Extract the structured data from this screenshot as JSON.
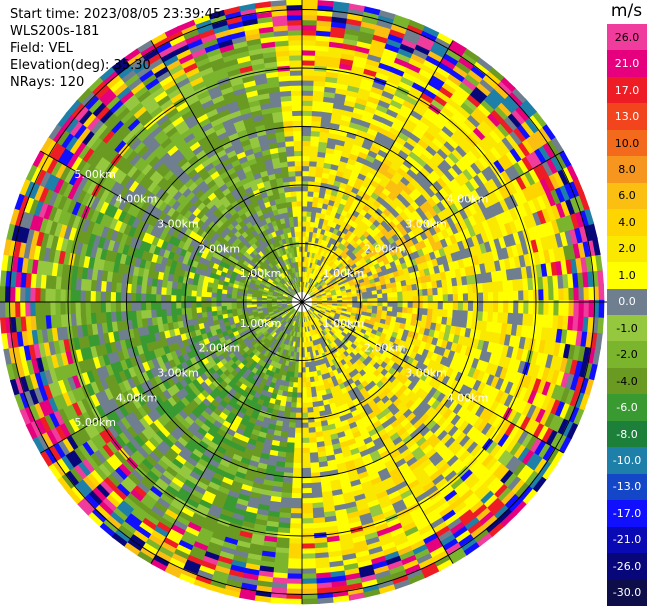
{
  "info": {
    "start_time": "Start time: 2023/08/05 23:39:45",
    "instrument": "WLS200s-181",
    "field": "Field: VEL",
    "elevation": "Elevation(deg): 35.30",
    "nrays": "NRays: 120"
  },
  "colorbar": {
    "unit": "m/s",
    "ticks": [
      "26.0",
      "21.0",
      "17.0",
      "13.0",
      "10.0",
      "8.0",
      "6.0",
      "4.0",
      "2.0",
      "1.0",
      "0.0",
      "-1.0",
      "-2.0",
      "-4.0",
      "-6.0",
      "-8.0",
      "-10.0",
      "-13.0",
      "-17.0",
      "-21.0",
      "-26.0",
      "-30.0"
    ],
    "colors": [
      "#f03c9c",
      "#e6007e",
      "#ee1c24",
      "#f2441d",
      "#f46a1c",
      "#f7961e",
      "#fbbf12",
      "#ffd500",
      "#fbe800",
      "#ffff00",
      "#6f7f8f",
      "#95c83e",
      "#7ab52d",
      "#6a9a22",
      "#3a9a32",
      "#1c7f3a",
      "#1e7fa8",
      "#1446c8",
      "#1010ff",
      "#0a0ab4",
      "#07077a",
      "#0d0d4a"
    ]
  },
  "range_rings": {
    "labels": [
      "1.00km",
      "2.00km",
      "3.00km",
      "4.00km",
      "5.00km"
    ]
  }
}
